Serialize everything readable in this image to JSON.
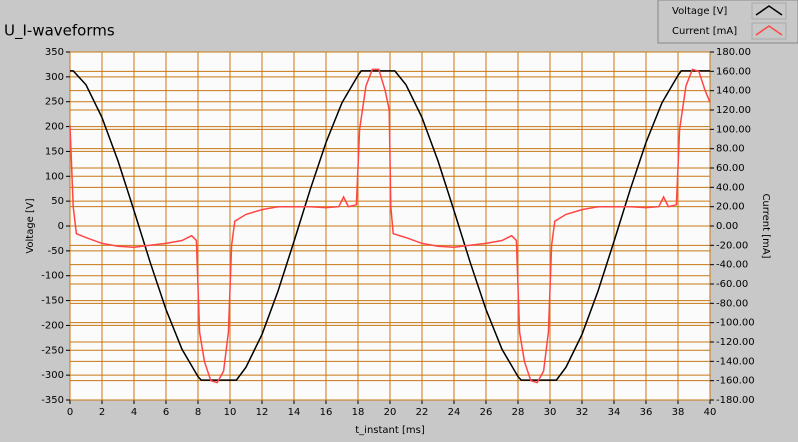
{
  "chart_data": {
    "type": "line",
    "title": "U_I-waveforms",
    "xlabel": "t_instant [ms]",
    "ylabel": "Voltage [V]",
    "y2label": "Current [mA]",
    "xlim": [
      0,
      40
    ],
    "xticks": [
      0,
      2,
      4,
      6,
      8,
      10,
      12,
      14,
      16,
      18,
      20,
      22,
      24,
      26,
      28,
      30,
      32,
      34,
      36,
      38,
      40
    ],
    "ylim": [
      -350,
      350
    ],
    "yticks": [
      -350,
      -300,
      -250,
      -200,
      -150,
      -100,
      -50,
      0,
      50,
      100,
      150,
      200,
      250,
      300,
      350
    ],
    "y2lim": [
      -180,
      180
    ],
    "y2ticks": [
      {
        "value": -180,
        "label": "-180.00"
      },
      {
        "value": -160,
        "label": "-160.00"
      },
      {
        "value": -140,
        "label": "-140.00"
      },
      {
        "value": -120,
        "label": "-120.00"
      },
      {
        "value": -100,
        "label": "-100.00"
      },
      {
        "value": -80,
        "label": "-80.00"
      },
      {
        "value": -60,
        "label": "-60.00"
      },
      {
        "value": -40,
        "label": "-40.00"
      },
      {
        "value": -20,
        "label": "-20.00"
      },
      {
        "value": 0,
        "label": "0.00"
      },
      {
        "value": 20,
        "label": "20.00"
      },
      {
        "value": 40,
        "label": "40.00"
      },
      {
        "value": 60,
        "label": "60.00"
      },
      {
        "value": 80,
        "label": "80.00"
      },
      {
        "value": 100,
        "label": "100.00"
      },
      {
        "value": 120,
        "label": "120.00"
      },
      {
        "value": 140,
        "label": "140.00"
      },
      {
        "value": 160,
        "label": "160.00"
      },
      {
        "value": 180,
        "label": "180.00"
      }
    ],
    "grid": true,
    "grid_color": "#c87814",
    "legend": "top-right",
    "series": [
      {
        "name": "Voltage [V]",
        "color": "#000000",
        "x": [
          0,
          0.2,
          1,
          2,
          3,
          4,
          5,
          6,
          7,
          8,
          8.2,
          9,
          10,
          10.4,
          11,
          12,
          13,
          14,
          15,
          16,
          17,
          18,
          18.2,
          19,
          20,
          20.3,
          21,
          22,
          23,
          24,
          25,
          26,
          27,
          28,
          28.2,
          29,
          30,
          30.4,
          31,
          32,
          33,
          34,
          35,
          36,
          37,
          38,
          38.2,
          39,
          40
        ],
        "values": [
          312,
          312,
          284,
          218,
          131,
          31,
          -72,
          -168,
          -248,
          -303,
          -310,
          -310,
          -310,
          -310,
          -284,
          -218,
          -131,
          -31,
          72,
          168,
          248,
          303,
          312,
          312,
          312,
          312,
          284,
          218,
          131,
          31,
          -72,
          -168,
          -248,
          -303,
          -310,
          -310,
          -310,
          -310,
          -284,
          -218,
          -131,
          -31,
          72,
          168,
          248,
          303,
          312,
          312,
          312
        ]
      },
      {
        "name": "Current [mA]",
        "color": "#ff4646",
        "axis": "y2",
        "x": [
          0,
          0.2,
          0.4,
          1,
          2,
          3,
          4,
          5,
          6,
          7,
          7.6,
          7.9,
          8.1,
          8.4,
          8.8,
          9.2,
          9.6,
          9.9,
          10.1,
          10.3,
          11,
          12,
          13,
          14,
          15,
          16,
          16.8,
          17.1,
          17.4,
          17.9,
          18.1,
          18.5,
          18.9,
          19.3,
          19.7,
          19.95,
          20.05,
          20.2,
          21,
          22,
          23,
          24,
          25,
          26,
          27,
          27.6,
          27.9,
          28.1,
          28.4,
          28.8,
          29.2,
          29.6,
          29.9,
          30.1,
          30.3,
          31,
          32,
          33,
          34,
          35,
          36,
          36.8,
          37.1,
          37.4,
          37.9,
          38.1,
          38.5,
          38.9,
          39.3,
          39.7,
          40
        ],
        "values": [
          104,
          20,
          -8,
          -12,
          -18,
          -21,
          -22,
          -20,
          -18,
          -15,
          -10,
          -15,
          -110,
          -140,
          -160,
          -162,
          -150,
          -110,
          -20,
          5,
          12,
          17,
          20,
          20,
          20,
          19,
          20,
          30,
          20,
          22,
          100,
          145,
          162,
          162,
          140,
          120,
          20,
          -8,
          -12,
          -18,
          -21,
          -22,
          -20,
          -18,
          -15,
          -10,
          -15,
          -110,
          -140,
          -160,
          -162,
          -150,
          -110,
          -20,
          5,
          12,
          17,
          20,
          20,
          20,
          19,
          20,
          30,
          20,
          22,
          100,
          145,
          162,
          160,
          140,
          128
        ]
      }
    ]
  }
}
